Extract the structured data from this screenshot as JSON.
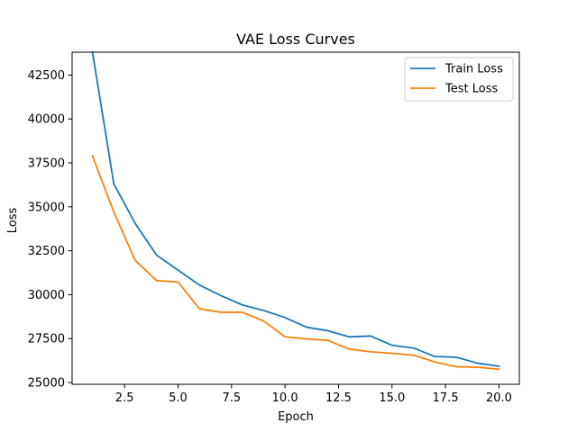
{
  "chart_data": {
    "type": "line",
    "title": "VAE Loss Curves",
    "xlabel": "Epoch",
    "ylabel": "Loss",
    "xlim": [
      0.05,
      20.95
    ],
    "ylim": [
      24900,
      43800
    ],
    "xticks": [
      2.5,
      5.0,
      7.5,
      10.0,
      12.5,
      15.0,
      17.5,
      20.0
    ],
    "yticks": [
      25000,
      27500,
      30000,
      32500,
      35000,
      37500,
      40000,
      42500
    ],
    "x": [
      1,
      2,
      3,
      4,
      5,
      6,
      7,
      8,
      9,
      10,
      11,
      12,
      13,
      14,
      15,
      16,
      17,
      18,
      19,
      20
    ],
    "series": [
      {
        "name": "Train Loss",
        "color": "#1f77b4",
        "values": [
          43800,
          36300,
          34050,
          32250,
          31400,
          30550,
          29950,
          29420,
          29100,
          28700,
          28150,
          27950,
          27600,
          27650,
          27120,
          26970,
          26480,
          26440,
          26100,
          25930
        ]
      },
      {
        "name": "Test Loss",
        "color": "#ff7f0e",
        "values": [
          37900,
          34700,
          31950,
          30800,
          30720,
          29200,
          29000,
          29000,
          28500,
          27600,
          27480,
          27400,
          26900,
          26750,
          26660,
          26560,
          26170,
          25900,
          25870,
          25760
        ]
      }
    ],
    "grid": false,
    "legend_position": "top-right"
  }
}
